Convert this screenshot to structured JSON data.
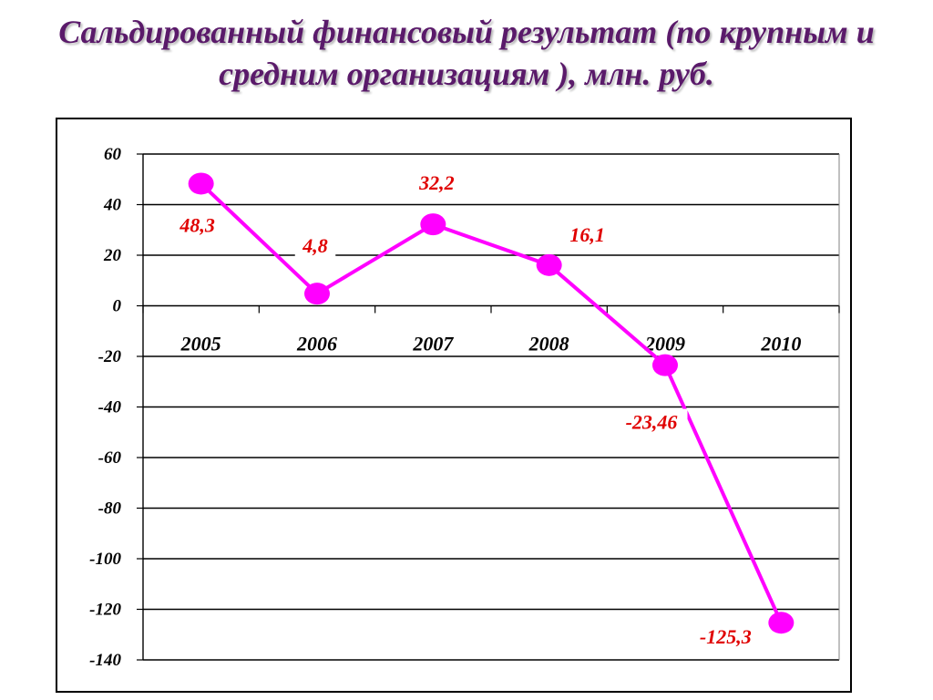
{
  "title": "Сальдированный финансовый результат (по крупным и средним организациям ), млн. руб.",
  "colors": {
    "line": "#ff00ff",
    "marker": "#ff00ff",
    "data_label": "#e00000",
    "title": "#5a1a6a"
  },
  "chart_data": {
    "type": "line",
    "title": "Сальдированный финансовый результат (по крупным и средним организациям ), млн. руб.",
    "categories": [
      "2005",
      "2006",
      "2007",
      "2008",
      "2009",
      "2010"
    ],
    "series": [
      {
        "values": [
          48.3,
          4.8,
          32.2,
          16.1,
          -23.46,
          -125.3
        ]
      }
    ],
    "data_labels": [
      "48,3",
      "4,8",
      "32,2",
      "16,1",
      "-23,46",
      "-125,3"
    ],
    "y_ticks": [
      60,
      40,
      20,
      0,
      -20,
      -40,
      -60,
      -80,
      -100,
      -120,
      -140
    ],
    "ylim": [
      -140,
      60
    ],
    "grid": true,
    "legend": "none",
    "xlabel": "",
    "ylabel": ""
  }
}
